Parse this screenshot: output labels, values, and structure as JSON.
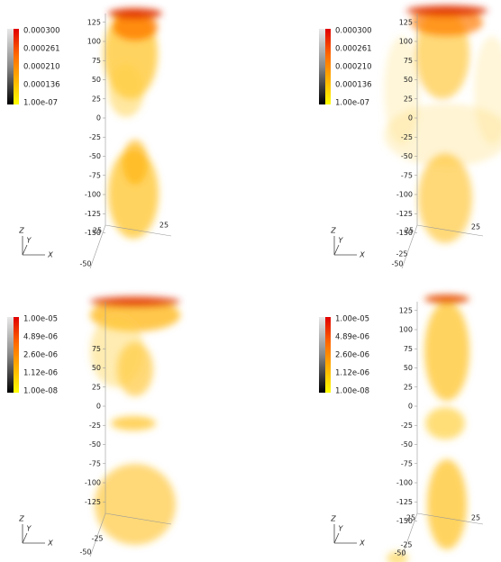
{
  "panels": [
    {
      "colorbar_labels": [
        "0.000300",
        "0.000261",
        "0.000210",
        "0.000136",
        "1.00e-07"
      ],
      "z_ticks": [
        125,
        100,
        75,
        50,
        25,
        0,
        -25,
        -50,
        -75,
        -100,
        -125,
        -150
      ],
      "extra_labels": [
        "25",
        "25",
        "-50"
      ],
      "axes_labels": [
        "Z",
        "Y",
        "X"
      ]
    },
    {
      "colorbar_labels": [
        "0.000300",
        "0.000261",
        "0.000210",
        "0.000136",
        "1.00e-07"
      ],
      "z_ticks": [
        125,
        100,
        75,
        50,
        25,
        0,
        -25,
        -50,
        -75,
        -100,
        -125,
        -150
      ],
      "extra_labels": [
        "25",
        "25",
        "-25",
        "-50"
      ],
      "axes_labels": [
        "Z",
        "Y",
        "X"
      ]
    },
    {
      "colorbar_labels": [
        "1.00e-05",
        "4.89e-06",
        "2.60e-06",
        "1.12e-06",
        "1.00e-08"
      ],
      "z_ticks": [
        75,
        50,
        25,
        0,
        -25,
        -50,
        -75,
        -100,
        -125
      ],
      "extra_labels": [
        "-25",
        "-50"
      ],
      "axes_labels": [
        "Z",
        "Y",
        "X"
      ]
    },
    {
      "colorbar_labels": [
        "1.00e-05",
        "4.89e-06",
        "2.60e-06",
        "1.12e-06",
        "1.00e-08"
      ],
      "z_ticks": [
        125,
        100,
        75,
        50,
        25,
        0,
        -25,
        -50,
        -75,
        -100,
        -125,
        -150
      ],
      "extra_labels": [
        "25",
        "25",
        "-25",
        "-50"
      ],
      "axes_labels": [
        "Z",
        "Y",
        "X"
      ]
    }
  ]
}
